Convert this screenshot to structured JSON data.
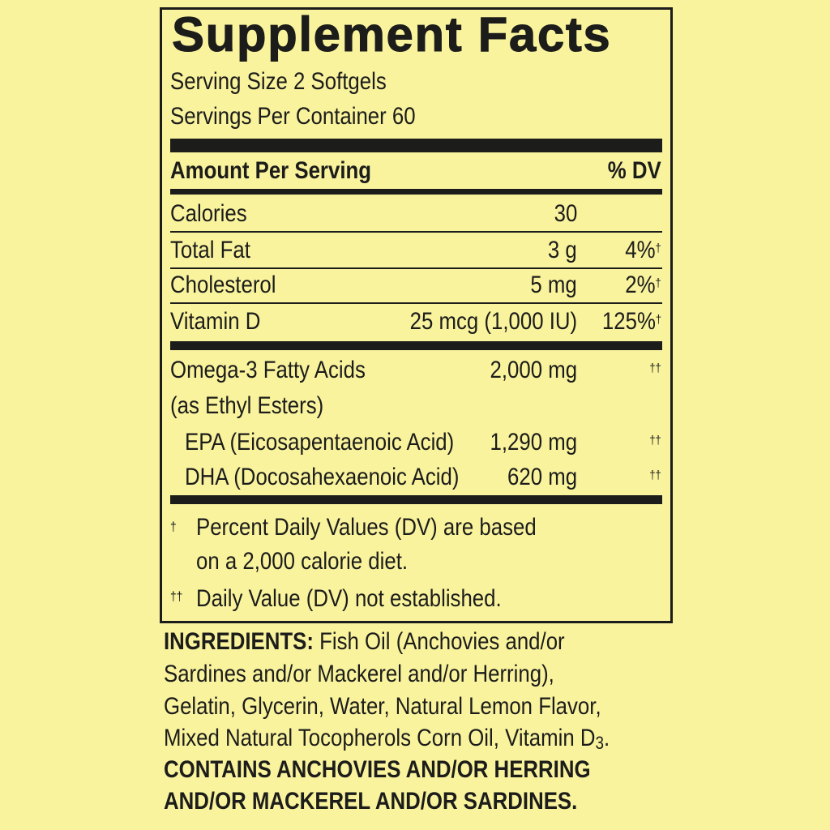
{
  "title": "Supplement Facts",
  "serving_size": "Serving Size 2 Softgels",
  "servings_per_container": "Servings Per Container 60",
  "header": {
    "amount": "Amount Per Serving",
    "dv": "% DV"
  },
  "rows": [
    {
      "name": "Calories",
      "amount": "30",
      "dv": "",
      "mark": ""
    },
    {
      "name": "Total Fat",
      "amount": "3 g",
      "dv": "4%",
      "mark": "†"
    },
    {
      "name": "Cholesterol",
      "amount": "5 mg",
      "dv": "2%",
      "mark": "†"
    },
    {
      "name": "Vitamin D",
      "amount": "25 mcg (1,000 IU)",
      "dv": "125%",
      "mark": "†"
    }
  ],
  "omega": {
    "name": "Omega-3 Fatty Acids",
    "sub": "(as Ethyl Esters)",
    "amount": "2,000 mg",
    "mark": "††",
    "items": [
      {
        "name": "EPA (Eicosapentaenoic Acid)",
        "amount": "1,290 mg",
        "mark": "††"
      },
      {
        "name": "DHA (Docosahexaenoic Acid)",
        "amount": "620 mg",
        "mark": "††"
      }
    ]
  },
  "footnotes": {
    "mark1": "†",
    "line1": "Percent Daily Values (DV) are based",
    "line2": "on a 2,000 calorie diet.",
    "mark2": "††",
    "line3": "Daily Value (DV) not established."
  },
  "ingredients": {
    "label": "INGREDIENTS:",
    "line1": " Fish Oil (Anchovies and/or",
    "line2": "Sardines and/or Mackerel and/or Herring),",
    "line3": "Gelatin, Glycerin, Water, Natural Lemon Flavor,",
    "line4": "Mixed Natural Tocopherols Corn Oil, Vitamin D",
    "line4_sub": "3",
    "line4_end": ".",
    "contains1": "CONTAINS ANCHOVIES AND/OR HERRING",
    "contains2": "AND/OR MACKEREL AND/OR SARDINES."
  }
}
